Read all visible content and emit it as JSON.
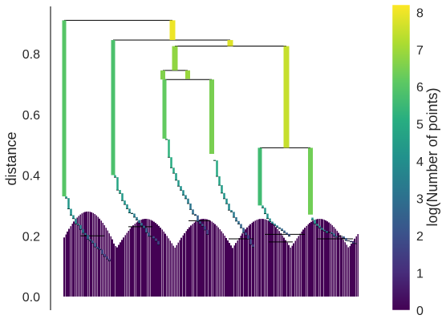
{
  "chart_data": {
    "type": "dendrogram",
    "ylabel": "distance",
    "ylim": [
      0,
      0.97
    ],
    "yticks": [
      0.0,
      0.2,
      0.4,
      0.6,
      0.8
    ],
    "ytick_labels": [
      "0.0",
      "0.2",
      "0.4",
      "0.6",
      "0.8"
    ],
    "colorbar": {
      "label": "log(Number of points)",
      "range": [
        0,
        8.2
      ],
      "ticks": [
        0,
        1,
        2,
        3,
        4,
        5,
        6,
        7,
        8
      ],
      "tick_labels": [
        "0",
        "1",
        "2",
        "3",
        "4",
        "5",
        "6",
        "7",
        "8"
      ],
      "colormap": "viridis"
    },
    "leaf_count": 5000,
    "root_log_size": 8.2,
    "merges": [
      {
        "name": "root",
        "distance": 0.91,
        "left_log_size": 6.0,
        "right_log_size": 8.0
      },
      {
        "name": "A",
        "distance": 0.845,
        "left_log_size": 5.8,
        "right_log_size": 7.8
      },
      {
        "name": "B",
        "distance": 0.825,
        "left_log_size": 6.8,
        "right_log_size": 7.5
      },
      {
        "name": "C",
        "distance": 0.745,
        "left_log_size": 6.6,
        "right_log_size": 6.9
      },
      {
        "name": "D",
        "distance": 0.715,
        "left_log_size": 6.2,
        "right_log_size": 6.5
      },
      {
        "name": "E",
        "distance": 0.49,
        "left_log_size": 5.6,
        "right_log_size": 6.4
      }
    ]
  },
  "colors": {
    "background": "#ffffff",
    "link": "#000000",
    "leaf_fill": "#440154"
  }
}
